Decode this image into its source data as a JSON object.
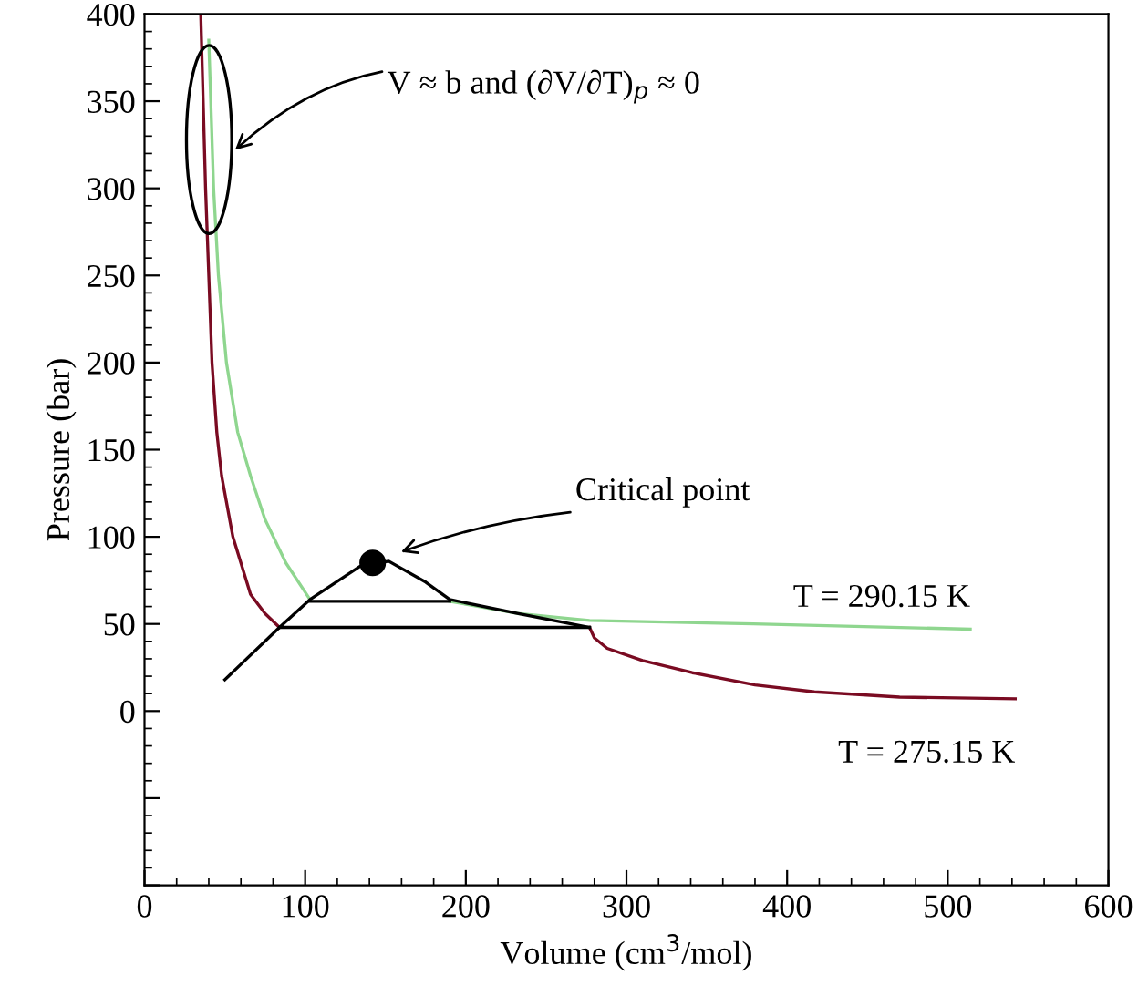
{
  "chart_data": {
    "type": "line",
    "xlabel": "Volume (cm$^{3}$/mol)",
    "ylabel": "Pressure (bar)",
    "xlim": [
      0,
      600
    ],
    "xticks": [
      0,
      100,
      200,
      300,
      400,
      500,
      600
    ],
    "ylim": [
      -100,
      400
    ],
    "yticks": [
      {
        "value": -100,
        "label": null
      },
      {
        "value": -50,
        "label": null
      },
      0,
      50,
      100,
      150,
      200,
      250,
      300,
      350,
      400
    ],
    "grid": false,
    "legend": false,
    "line_style": "solid",
    "series": [
      {
        "name": "T = 290.15 K",
        "color": "#8fd68f",
        "x": [
          40,
          43,
          46,
          51,
          58,
          66,
          75,
          88,
          103,
          150,
          190,
          232,
          265,
          277,
          379,
          514
        ],
        "values": [
          385,
          300,
          250,
          200,
          160,
          135,
          110,
          85,
          64,
          null,
          63,
          56,
          53,
          52,
          50,
          47
        ]
      },
      {
        "name": "T = 275.15 K",
        "color": "#7a0b22",
        "x": [
          35,
          38,
          40,
          42,
          45,
          48,
          55,
          66,
          75,
          84,
          180,
          277,
          280,
          288,
          310,
          341,
          380,
          417,
          470,
          542
        ],
        "values": [
          400,
          300,
          250,
          200,
          160,
          135,
          100,
          67,
          56,
          48,
          null,
          48,
          42,
          36,
          29,
          22,
          15,
          11,
          8,
          7
        ]
      },
      {
        "color": "#000000",
        "x": [
          50,
          84,
          103,
          134,
          152,
          175,
          190,
          232,
          277
        ],
        "values": [
          18,
          48,
          64,
          83,
          86,
          74,
          64,
          56,
          48
        ]
      },
      {
        "color": "#000000",
        "x": [
          103,
          190
        ],
        "values": [
          63,
          63
        ]
      },
      {
        "color": "#000000",
        "x": [
          84,
          277
        ],
        "values": [
          48,
          48
        ]
      },
      {
        "type": "scatter",
        "marker": "circle",
        "color": "#000000",
        "x": [
          142
        ],
        "values": [
          85
        ]
      }
    ],
    "annotations": [
      "V ≈ b and (∂V/∂T)$_{p}$ ≈ 0",
      "Critical point"
    ]
  }
}
